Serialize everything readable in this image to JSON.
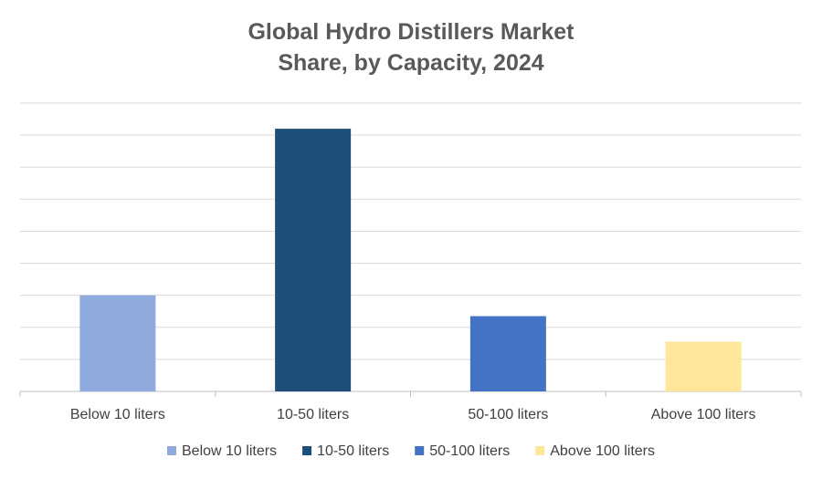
{
  "chart_data": {
    "type": "bar",
    "title_lines": [
      "Global Hydro Distillers Market",
      "Share, by Capacity, 2024"
    ],
    "categories": [
      "Below 10 liters",
      "10-50 liters",
      "50-100 liters",
      "Above 100 liters"
    ],
    "values": [
      30,
      82,
      23.5,
      15.5
    ],
    "colors": [
      "#8faadc",
      "#1f4e79",
      "#4472c4",
      "#ffe699"
    ],
    "ylim": [
      0,
      90
    ],
    "gridlines": true,
    "y_tick_labels_shown": false,
    "legend": {
      "position": "bottom",
      "entries": [
        "Below 10 liters",
        "10-50 liters",
        "50-100 liters",
        "Above 100 liters"
      ]
    },
    "xlabel": "",
    "ylabel": ""
  },
  "colors": {
    "title": "#595959",
    "grid": "#d9d9d9",
    "axis": "#bfbfbf",
    "text": "#404040"
  }
}
